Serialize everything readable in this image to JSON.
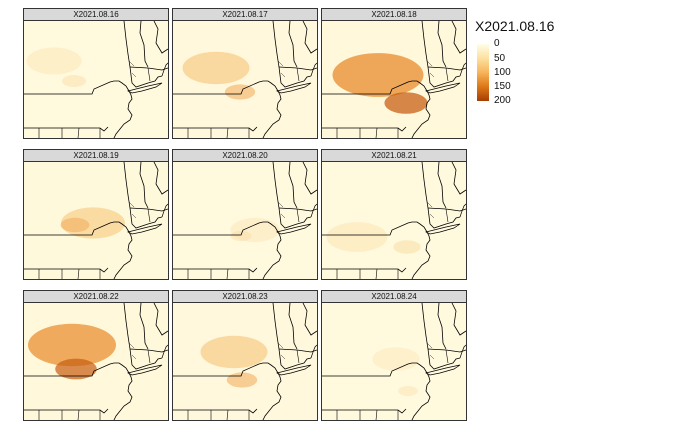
{
  "figure": {
    "legend": {
      "title": "X2021.08.16",
      "ticks": [
        "0",
        "50",
        "100",
        "150",
        "200"
      ],
      "colors": [
        "#fffde8",
        "#fde1a0",
        "#f7b45a",
        "#dd7717",
        "#a63d04"
      ]
    },
    "panels": [
      {
        "title": "X2021.08.16",
        "intensity": 0.25
      },
      {
        "title": "X2021.08.17",
        "intensity": 0.45
      },
      {
        "title": "X2021.08.18",
        "intensity": 0.85
      },
      {
        "title": "X2021.08.19",
        "intensity": 0.4
      },
      {
        "title": "X2021.08.20",
        "intensity": 0.15
      },
      {
        "title": "X2021.08.21",
        "intensity": 0.35
      },
      {
        "title": "X2021.08.22",
        "intensity": 0.8
      },
      {
        "title": "X2021.08.23",
        "intensity": 0.45
      },
      {
        "title": "X2021.08.24",
        "intensity": 0.12
      }
    ]
  }
}
